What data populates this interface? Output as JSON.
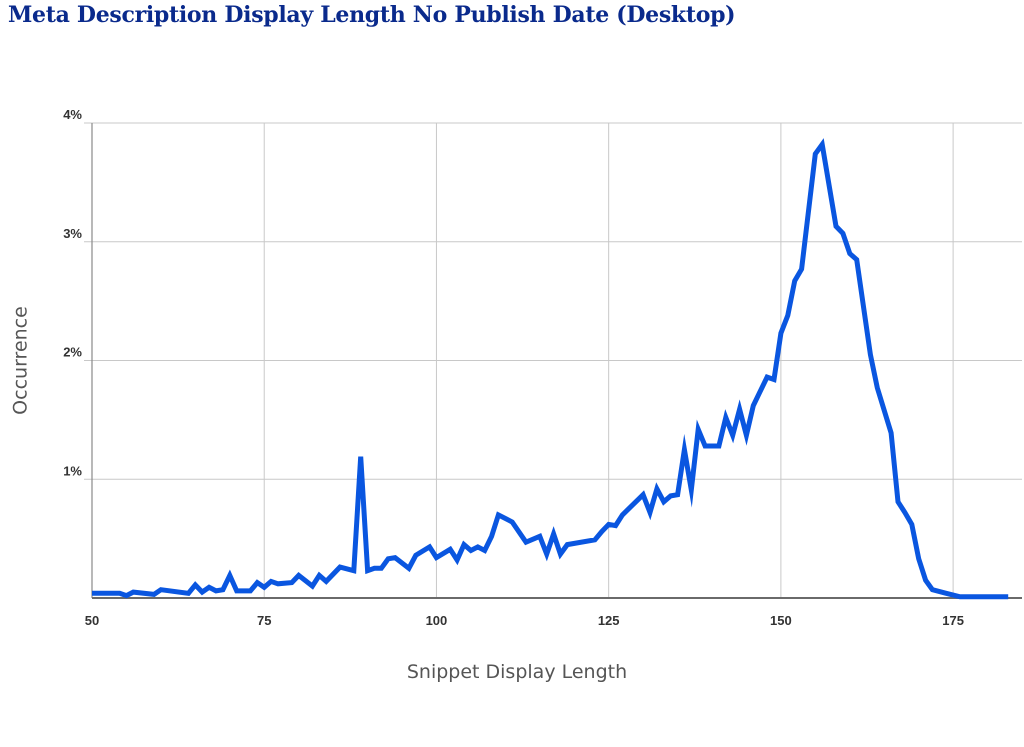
{
  "chart_data": {
    "type": "line",
    "title": "Meta Description Display Length No Publish Date (Desktop)",
    "xlabel": "Snippet Display Length",
    "ylabel": "Occurrence",
    "xlim": [
      50,
      185
    ],
    "ylim": [
      0,
      4
    ],
    "x_ticks": [
      50,
      75,
      100,
      125,
      150,
      175
    ],
    "y_ticks": [
      1,
      2,
      3,
      4
    ],
    "y_tick_labels": [
      "1%",
      "2%",
      "3%",
      "4%"
    ],
    "grid": true,
    "series_color": "#0a56e0",
    "series": [
      {
        "x": [
          50,
          54,
          55,
          56,
          59,
          60,
          64,
          65,
          66,
          67,
          68,
          69,
          70,
          71,
          72,
          73,
          74,
          75,
          76,
          77,
          79,
          80,
          82,
          83,
          84,
          86,
          88,
          89,
          90,
          91,
          92,
          93,
          94,
          96,
          97,
          99,
          100,
          102,
          103,
          104,
          105,
          106,
          107,
          108,
          109,
          111,
          113,
          115,
          116,
          117,
          118,
          119,
          123,
          124,
          125,
          126,
          127,
          130,
          131,
          132,
          133,
          134,
          135,
          136,
          137,
          138,
          139,
          141,
          142,
          143,
          144,
          145,
          146,
          148,
          149,
          150,
          151,
          152,
          153,
          155,
          156,
          158,
          159,
          160,
          161,
          163,
          164,
          166,
          167,
          168,
          169,
          170,
          171,
          172,
          174,
          176,
          178,
          183
        ],
        "y": [
          0.04,
          0.04,
          0.02,
          0.05,
          0.03,
          0.07,
          0.04,
          0.11,
          0.05,
          0.09,
          0.06,
          0.07,
          0.19,
          0.06,
          0.06,
          0.06,
          0.13,
          0.09,
          0.14,
          0.12,
          0.13,
          0.19,
          0.1,
          0.19,
          0.14,
          0.26,
          0.23,
          1.19,
          0.23,
          0.25,
          0.25,
          0.33,
          0.34,
          0.25,
          0.36,
          0.43,
          0.34,
          0.41,
          0.32,
          0.45,
          0.4,
          0.43,
          0.4,
          0.52,
          0.7,
          0.64,
          0.47,
          0.52,
          0.37,
          0.54,
          0.37,
          0.45,
          0.49,
          0.56,
          0.62,
          0.61,
          0.7,
          0.87,
          0.72,
          0.92,
          0.81,
          0.86,
          0.87,
          1.25,
          0.91,
          1.42,
          1.28,
          1.28,
          1.52,
          1.37,
          1.59,
          1.37,
          1.62,
          1.86,
          1.84,
          2.23,
          2.38,
          2.67,
          2.77,
          3.74,
          3.82,
          3.13,
          3.07,
          2.9,
          2.85,
          2.05,
          1.77,
          1.39,
          0.81,
          0.72,
          0.62,
          0.33,
          0.15,
          0.07,
          0.04,
          0.01,
          0.01,
          0.01
        ]
      }
    ]
  }
}
